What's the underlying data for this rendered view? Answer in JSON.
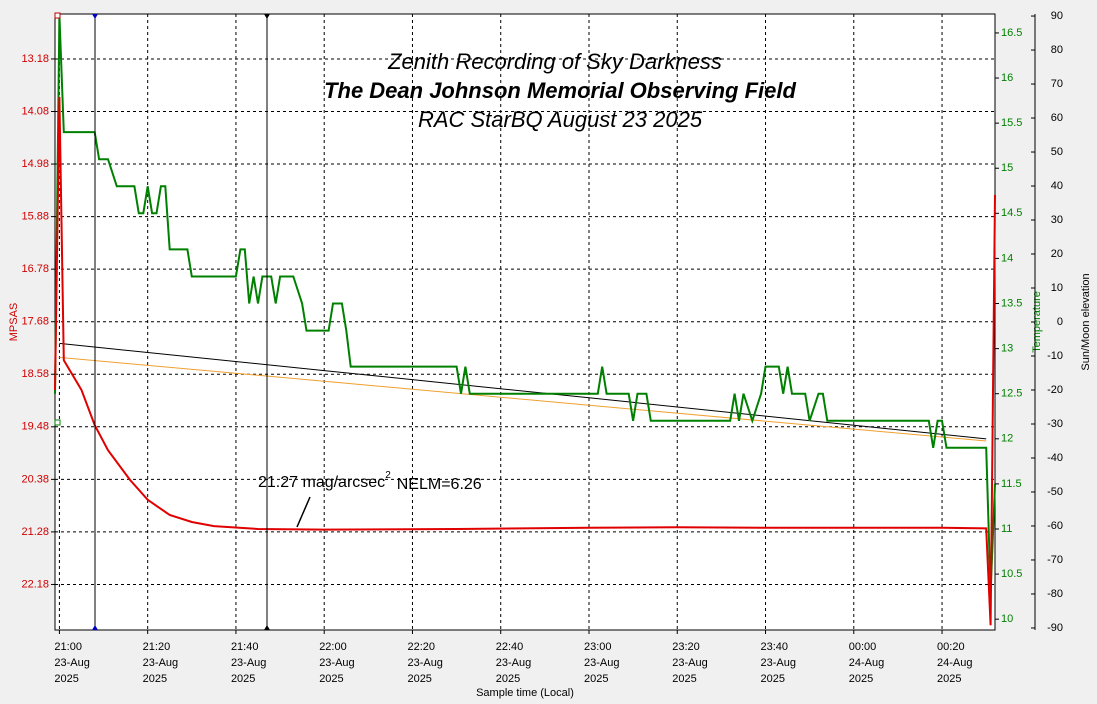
{
  "chart_data": {
    "type": "line",
    "title": "Zenith Recording of Sky Darkness",
    "subtitle": "The Dean Johnson Memorial Observing Field",
    "subtitle2": "RAC StarBQ August 23 2025",
    "annotation": {
      "text": "21.27 mag/arcsec",
      "superscript": "2",
      "nelm": "NELM=6.26"
    },
    "x_label": "Sample time (Local)",
    "y_label": "MPSAS",
    "y2_label": "Temperature",
    "y3_label": "Sun/Moon elevation",
    "xlim": [
      "2025-08-23 20:59",
      "2025-08-24 00:32"
    ],
    "xticks": [
      {
        "value": "2025-08-23 21:00",
        "label": [
          "21:00",
          "23-Aug",
          "2025"
        ]
      },
      {
        "value": "2025-08-23 21:20",
        "label": [
          "21:20",
          "23-Aug",
          "2025"
        ]
      },
      {
        "value": "2025-08-23 21:40",
        "label": [
          "21:40",
          "23-Aug",
          "2025"
        ]
      },
      {
        "value": "2025-08-23 22:00",
        "label": [
          "22:00",
          "23-Aug",
          "2025"
        ]
      },
      {
        "value": "2025-08-23 22:20",
        "label": [
          "22:20",
          "23-Aug",
          "2025"
        ]
      },
      {
        "value": "2025-08-23 22:40",
        "label": [
          "22:40",
          "23-Aug",
          "2025"
        ]
      },
      {
        "value": "2025-08-23 23:00",
        "label": [
          "23:00",
          "23-Aug",
          "2025"
        ]
      },
      {
        "value": "2025-08-23 23:20",
        "label": [
          "23:20",
          "23-Aug",
          "2025"
        ]
      },
      {
        "value": "2025-08-23 23:40",
        "label": [
          "23:40",
          "23-Aug",
          "2025"
        ]
      },
      {
        "value": "2025-08-24 00:00",
        "label": [
          "00:00",
          "24-Aug",
          "2025"
        ]
      },
      {
        "value": "2025-08-24 00:20",
        "label": [
          "00:20",
          "24-Aug",
          "2025"
        ]
      }
    ],
    "ylim": [
      12.41,
      22.96
    ],
    "y_inverted": true,
    "yticks": [
      13.18,
      14.08,
      14.98,
      15.88,
      16.78,
      17.68,
      18.58,
      19.48,
      20.38,
      21.28,
      22.18
    ],
    "y_color": "#d00000",
    "y2lim": [
      9.88,
      16.71
    ],
    "y2ticks": [
      10,
      10.5,
      11,
      11.5,
      12,
      12.5,
      13,
      13.5,
      14,
      14.5,
      15,
      15.5,
      16,
      16.5
    ],
    "y2_color": "#008000",
    "y3lim": [
      -90.6,
      90.6
    ],
    "y3ticks": [
      -90,
      -80,
      -70,
      -60,
      -50,
      -40,
      -30,
      -20,
      -10,
      0,
      10,
      20,
      30,
      40,
      50,
      60,
      70,
      80,
      90
    ],
    "y3_color": "#000000",
    "grid": true,
    "series": [
      {
        "name": "MPSAS",
        "color": "#e00000",
        "axis": "y",
        "x": [
          "2025-08-23 20:59",
          "2025-08-23 21:00",
          "2025-08-23 21:01",
          "2025-08-23 21:05",
          "2025-08-23 21:08",
          "2025-08-23 21:11",
          "2025-08-23 21:16",
          "2025-08-23 21:20",
          "2025-08-23 21:25",
          "2025-08-23 21:30",
          "2025-08-23 21:35",
          "2025-08-23 21:45",
          "2025-08-23 22:00",
          "2025-08-23 22:30",
          "2025-08-23 23:00",
          "2025-08-23 23:20",
          "2025-08-23 23:40",
          "2025-08-24 00:00",
          "2025-08-24 00:20",
          "2025-08-24 00:30",
          "2025-08-24 00:31",
          "2025-08-24 00:32"
        ],
        "values": [
          18.85,
          13.83,
          18.34,
          18.85,
          19.45,
          19.88,
          20.39,
          20.73,
          20.99,
          21.11,
          21.18,
          21.23,
          21.24,
          21.23,
          21.21,
          21.2,
          21.21,
          21.21,
          21.21,
          21.22,
          22.88,
          15.51
        ]
      },
      {
        "name": "Temperature",
        "color": "#008000",
        "axis": "y2",
        "x": [
          "2025-08-23 20:59",
          "2025-08-23 21:00",
          "2025-08-23 21:01",
          "2025-08-23 21:08",
          "2025-08-23 21:09",
          "2025-08-23 21:11",
          "2025-08-23 21:13",
          "2025-08-23 21:17",
          "2025-08-23 21:18",
          "2025-08-23 21:19",
          "2025-08-23 21:20",
          "2025-08-23 21:21",
          "2025-08-23 21:22",
          "2025-08-23 21:23",
          "2025-08-23 21:24",
          "2025-08-23 21:25",
          "2025-08-23 21:29",
          "2025-08-23 21:30",
          "2025-08-23 21:40",
          "2025-08-23 21:41",
          "2025-08-23 21:42",
          "2025-08-23 21:43",
          "2025-08-23 21:44",
          "2025-08-23 21:45",
          "2025-08-23 21:46",
          "2025-08-23 21:48",
          "2025-08-23 21:49",
          "2025-08-23 21:50",
          "2025-08-23 21:53",
          "2025-08-23 21:55",
          "2025-08-23 21:56",
          "2025-08-23 22:01",
          "2025-08-23 22:02",
          "2025-08-23 22:04",
          "2025-08-23 22:05",
          "2025-08-23 22:06",
          "2025-08-23 22:30",
          "2025-08-23 22:31",
          "2025-08-23 22:32",
          "2025-08-23 22:33",
          "2025-08-23 23:02",
          "2025-08-23 23:03",
          "2025-08-23 23:04",
          "2025-08-23 23:09",
          "2025-08-23 23:10",
          "2025-08-23 23:11",
          "2025-08-23 23:13",
          "2025-08-23 23:14",
          "2025-08-23 23:32",
          "2025-08-23 23:33",
          "2025-08-23 23:34",
          "2025-08-23 23:35",
          "2025-08-23 23:37",
          "2025-08-23 23:39",
          "2025-08-23 23:40",
          "2025-08-23 23:43",
          "2025-08-23 23:44",
          "2025-08-23 23:45",
          "2025-08-23 23:46",
          "2025-08-23 23:49",
          "2025-08-23 23:50",
          "2025-08-23 23:52",
          "2025-08-23 23:53",
          "2025-08-23 23:54",
          "2025-08-24 00:17",
          "2025-08-24 00:18",
          "2025-08-24 00:19",
          "2025-08-24 00:20",
          "2025-08-24 00:21",
          "2025-08-24 00:30",
          "2025-08-24 00:31",
          "2025-08-24 00:32"
        ],
        "values": [
          12.5,
          16.7,
          15.4,
          15.4,
          15.1,
          15.1,
          14.8,
          14.8,
          14.5,
          14.5,
          14.8,
          14.5,
          14.5,
          14.8,
          14.8,
          14.1,
          14.1,
          13.8,
          13.8,
          14.1,
          14.1,
          13.5,
          13.8,
          13.5,
          13.8,
          13.8,
          13.5,
          13.8,
          13.8,
          13.5,
          13.2,
          13.2,
          13.5,
          13.5,
          13.2,
          12.8,
          12.8,
          12.5,
          12.8,
          12.5,
          12.5,
          12.8,
          12.5,
          12.5,
          12.2,
          12.5,
          12.5,
          12.2,
          12.2,
          12.5,
          12.2,
          12.5,
          12.2,
          12.5,
          12.8,
          12.8,
          12.5,
          12.8,
          12.5,
          12.5,
          12.2,
          12.5,
          12.5,
          12.2,
          12.2,
          11.9,
          12.2,
          12.2,
          11.9,
          11.9,
          10.3,
          11.5
        ]
      },
      {
        "name": "Sun elevation",
        "color": "#000000",
        "axis": "y3",
        "x": [
          "2025-08-23 21:00",
          "2025-08-23 22:00",
          "2025-08-23 23:00",
          "2025-08-24 00:00",
          "2025-08-24 00:30"
        ],
        "values": [
          -6.3,
          -14.3,
          -22.3,
          -30.4,
          -34.4
        ]
      },
      {
        "name": "Moon elevation",
        "color": "#f0a030",
        "axis": "y3",
        "x": [
          "2025-08-23 21:00",
          "2025-08-23 22:00",
          "2025-08-23 23:00",
          "2025-08-24 00:00",
          "2025-08-24 00:30"
        ],
        "values": [
          -10.4,
          -17.4,
          -24.5,
          -31.5,
          -35.0
        ]
      }
    ]
  }
}
